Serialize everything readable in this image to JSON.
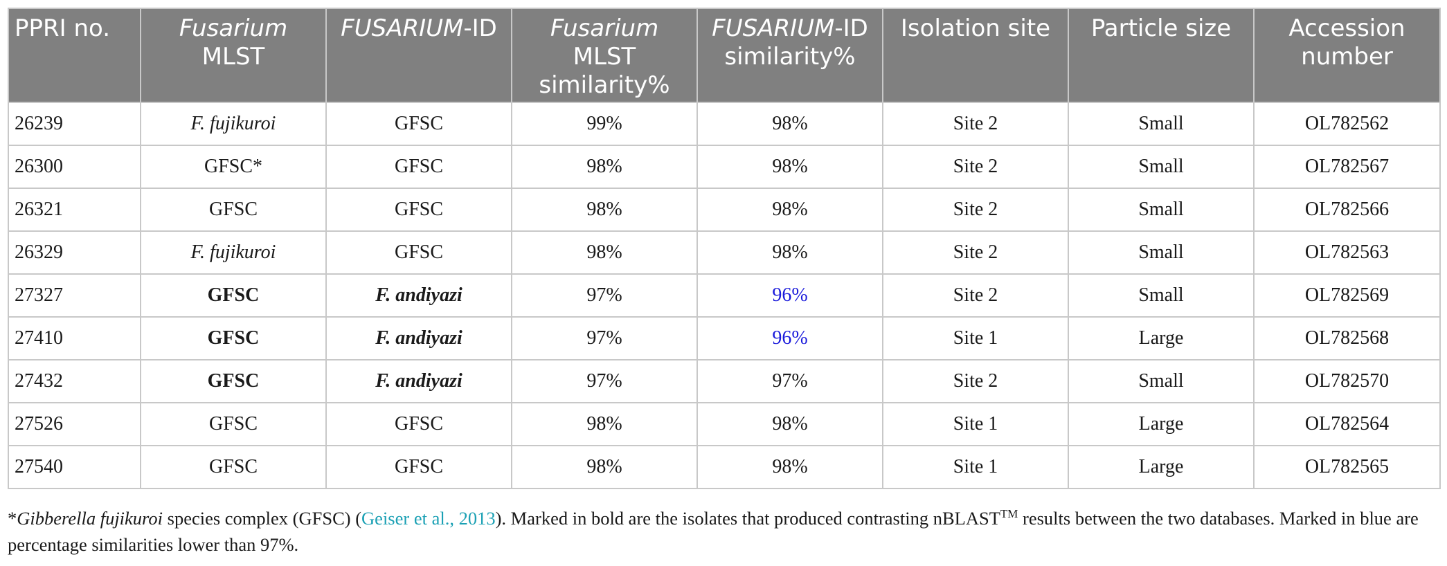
{
  "table": {
    "headers": [
      {
        "parts": [
          {
            "text": "PPRI no.",
            "italic": false
          }
        ]
      },
      {
        "parts": [
          {
            "text": "Fusarium",
            "italic": true
          },
          {
            "text": "MLST",
            "italic": false,
            "break": true
          }
        ]
      },
      {
        "parts": [
          {
            "text": "FUSARIUM",
            "italic": true
          },
          {
            "text": "-ID",
            "italic": false
          }
        ]
      },
      {
        "parts": [
          {
            "text": "Fusarium",
            "italic": true
          },
          {
            "text": "MLST",
            "italic": false,
            "break": true
          },
          {
            "text": "similarity%",
            "italic": false,
            "break": true
          }
        ]
      },
      {
        "parts": [
          {
            "text": "FUSARIUM",
            "italic": true
          },
          {
            "text": "-ID",
            "italic": false
          },
          {
            "text": "similarity%",
            "italic": false,
            "break": true
          }
        ]
      },
      {
        "parts": [
          {
            "text": "Isolation site",
            "italic": false
          }
        ]
      },
      {
        "parts": [
          {
            "text": "Particle size",
            "italic": false
          }
        ]
      },
      {
        "parts": [
          {
            "text": "Accession",
            "italic": false
          },
          {
            "text": "number",
            "italic": false,
            "break": true
          }
        ]
      }
    ],
    "rows": [
      {
        "cells": [
          "26239",
          "F. fujikuroi",
          "GFSC",
          "99%",
          "98%",
          "Site 2",
          "Small",
          "OL782562"
        ],
        "styles": [
          "",
          "ital",
          "",
          "",
          "",
          "",
          "",
          ""
        ]
      },
      {
        "cells": [
          "26300",
          "GFSC*",
          "GFSC",
          "98%",
          "98%",
          "Site 2",
          "Small",
          "OL782567"
        ],
        "styles": [
          "",
          "",
          "",
          "",
          "",
          "",
          "",
          ""
        ]
      },
      {
        "cells": [
          "26321",
          "GFSC",
          "GFSC",
          "98%",
          "98%",
          "Site 2",
          "Small",
          "OL782566"
        ],
        "styles": [
          "",
          "",
          "",
          "",
          "",
          "",
          "",
          ""
        ]
      },
      {
        "cells": [
          "26329",
          "F. fujikuroi",
          "GFSC",
          "98%",
          "98%",
          "Site 2",
          "Small",
          "OL782563"
        ],
        "styles": [
          "",
          "ital",
          "",
          "",
          "",
          "",
          "",
          ""
        ]
      },
      {
        "cells": [
          "27327",
          "GFSC",
          "F. andiyazi",
          "97%",
          "96%",
          "Site 2",
          "Small",
          "OL782569"
        ],
        "styles": [
          "",
          "bold",
          "bold-ital",
          "",
          "blue",
          "",
          "",
          ""
        ]
      },
      {
        "cells": [
          "27410",
          "GFSC",
          "F. andiyazi",
          "97%",
          "96%",
          "Site 1",
          "Large",
          "OL782568"
        ],
        "styles": [
          "",
          "bold",
          "bold-ital",
          "",
          "blue",
          "",
          "",
          ""
        ]
      },
      {
        "cells": [
          "27432",
          "GFSC",
          "F. andiyazi",
          "97%",
          "97%",
          "Site 2",
          "Small",
          "OL782570"
        ],
        "styles": [
          "",
          "bold",
          "bold-ital",
          "",
          "",
          "",
          "",
          ""
        ]
      },
      {
        "cells": [
          "27526",
          "GFSC",
          "GFSC",
          "98%",
          "98%",
          "Site 1",
          "Large",
          "OL782564"
        ],
        "styles": [
          "",
          "",
          "",
          "",
          "",
          "",
          "",
          ""
        ]
      },
      {
        "cells": [
          "27540",
          "GFSC",
          "GFSC",
          "98%",
          "98%",
          "Site 1",
          "Large",
          "OL782565"
        ],
        "styles": [
          "",
          "",
          "",
          "",
          "",
          "",
          "",
          ""
        ]
      }
    ]
  },
  "footnote": {
    "marker": "*",
    "species": "Gibberella fujikuroi",
    "text1": " species complex (GFSC) (",
    "citation": "Geiser et al., 2013",
    "text2": "). Marked in bold are the isolates that produced contrasting nBLAST",
    "tm": "TM",
    "text3": " results between the two databases. Marked in blue are percentage similarities lower than 97%."
  },
  "colors": {
    "header_bg": "#808080",
    "border": "#c8c8c8",
    "low_similarity": "#1a1adb",
    "citation": "#1aa0b4"
  }
}
